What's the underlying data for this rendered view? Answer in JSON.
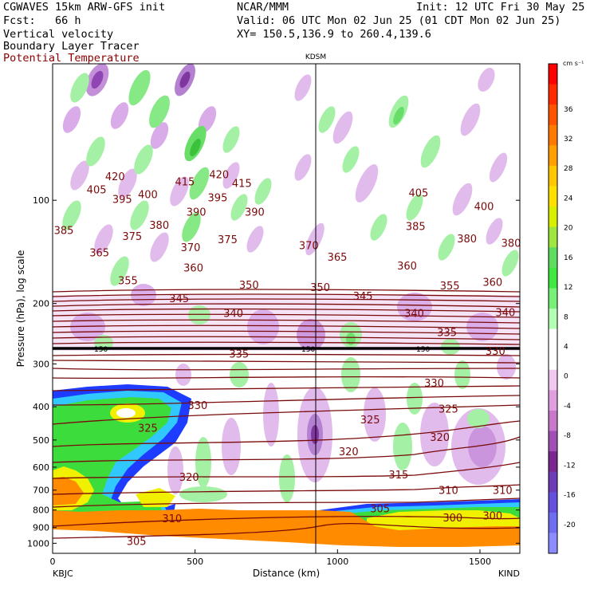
{
  "header": {
    "model": "CGWAVES 15km ARW-GFS init",
    "center": "NCAR/MMM",
    "init": "Init: 12 UTC Fri 30 May 25",
    "fcst": "Fcst:   66 h",
    "valid": "Valid: 06 UTC Mon 02 Jun 25 (01 CDT Mon 02 Jun 25)",
    "field1": "Vertical velocity",
    "xy": "XY= 150.5,136.9 to 260.4,139.6",
    "field2": "Boundary Layer Tracer",
    "field3": "Potential Temperature"
  },
  "colors": {
    "theta": "#7a0a0a",
    "tracer_orange": "#ff8c00",
    "tracer_yellow": "#f0f000",
    "tracer_green": "#3cdc3c",
    "tracer_cyan": "#30c8ff",
    "tracer_blue": "#1e3cff"
  },
  "chart_data": {
    "type": "heatmap",
    "title": "KDSM",
    "xlabel": "Distance (km)",
    "ylabel": "Pressure (hPa), log scale",
    "xlim": [
      0,
      1640
    ],
    "ylim": [
      1070,
      40
    ],
    "log_y": true,
    "x_ticks": [
      "0",
      "500",
      "1000",
      "1500"
    ],
    "x_end_labels": [
      "KBJC",
      "KIND"
    ],
    "y_ticks": [
      "100",
      "200",
      "300",
      "400",
      "500",
      "600",
      "700",
      "800",
      "900",
      "1000"
    ],
    "colorbar": {
      "unit": "cm s⁻¹",
      "labels": [
        "36",
        "32",
        "28",
        "24",
        "20",
        "16",
        "12",
        "8",
        "4",
        "0",
        "-4",
        "-8",
        "-12",
        "-16",
        "-20"
      ],
      "colors": [
        "#ff0000",
        "#ff2a00",
        "#ff5500",
        "#ff7a00",
        "#ffa000",
        "#ffc800",
        "#ffe000",
        "#d8f000",
        "#a0e640",
        "#60dc60",
        "#40e840",
        "#78f078",
        "#b4ffb4",
        "#ffffff",
        "#ffffff",
        "#f0c8f0",
        "#e0a0e0",
        "#c878c8",
        "#a050b4",
        "#7a2890",
        "#6e3cb4",
        "#6450dc",
        "#6e6ef0",
        "#8c8cff"
      ]
    },
    "marker_line": {
      "x": 940,
      "label": "KDSM"
    },
    "tropopause": {
      "p": 150,
      "label": "150"
    },
    "theta_labels": [
      {
        "v": "420",
        "x": 180,
        "p": 85
      },
      {
        "v": "405",
        "x": 115,
        "p": 93
      },
      {
        "v": "395",
        "x": 205,
        "p": 99
      },
      {
        "v": "400",
        "x": 295,
        "p": 96
      },
      {
        "v": "415",
        "x": 425,
        "p": 88
      },
      {
        "v": "420",
        "x": 545,
        "p": 84
      },
      {
        "v": "395",
        "x": 540,
        "p": 98
      },
      {
        "v": "415",
        "x": 625,
        "p": 89
      },
      {
        "v": "390",
        "x": 465,
        "p": 108
      },
      {
        "v": "385",
        "x": 0,
        "p": 122
      },
      {
        "v": "375",
        "x": 240,
        "p": 127
      },
      {
        "v": "380",
        "x": 335,
        "p": 118
      },
      {
        "v": "375",
        "x": 575,
        "p": 130
      },
      {
        "v": "390",
        "x": 670,
        "p": 108
      },
      {
        "v": "405",
        "x": 1245,
        "p": 95
      },
      {
        "v": "400",
        "x": 1475,
        "p": 104
      },
      {
        "v": "385",
        "x": 1235,
        "p": 119
      },
      {
        "v": "380",
        "x": 1415,
        "p": 129
      },
      {
        "v": "380",
        "x": 1570,
        "p": 133
      },
      {
        "v": "365",
        "x": 125,
        "p": 142
      },
      {
        "v": "370",
        "x": 445,
        "p": 137
      },
      {
        "v": "370",
        "x": 860,
        "p": 135
      },
      {
        "v": "365",
        "x": 960,
        "p": 146
      },
      {
        "v": "360",
        "x": 1205,
        "p": 155
      },
      {
        "v": "360",
        "x": 455,
        "p": 157
      },
      {
        "v": "355",
        "x": 225,
        "p": 171
      },
      {
        "v": "350",
        "x": 650,
        "p": 176
      },
      {
        "v": "350",
        "x": 900,
        "p": 179
      },
      {
        "v": "345",
        "x": 1050,
        "p": 190
      },
      {
        "v": "355",
        "x": 1355,
        "p": 177
      },
      {
        "v": "360",
        "x": 1505,
        "p": 173
      },
      {
        "v": "345",
        "x": 405,
        "p": 193
      },
      {
        "v": "340",
        "x": 595,
        "p": 213
      },
      {
        "v": "340",
        "x": 1230,
        "p": 213
      },
      {
        "v": "340",
        "x": 1550,
        "p": 212
      },
      {
        "v": "335",
        "x": 1345,
        "p": 242
      },
      {
        "v": "330",
        "x": 1515,
        "p": 275
      },
      {
        "v": "335",
        "x": 615,
        "p": 280
      },
      {
        "v": "330",
        "x": 1300,
        "p": 340
      },
      {
        "v": "330",
        "x": 470,
        "p": 395
      },
      {
        "v": "325",
        "x": 1075,
        "p": 435
      },
      {
        "v": "325",
        "x": 1350,
        "p": 405
      },
      {
        "v": "325",
        "x": 295,
        "p": 460
      },
      {
        "v": "320",
        "x": 1320,
        "p": 490
      },
      {
        "v": "320",
        "x": 1000,
        "p": 540
      },
      {
        "v": "320",
        "x": 440,
        "p": 640
      },
      {
        "v": "315",
        "x": 1175,
        "p": 630
      },
      {
        "v": "310",
        "x": 1350,
        "p": 700
      },
      {
        "v": "310",
        "x": 1540,
        "p": 700
      },
      {
        "v": "305",
        "x": 1110,
        "p": 790
      },
      {
        "v": "300",
        "x": 1365,
        "p": 840
      },
      {
        "v": "300",
        "x": 1505,
        "p": 830
      },
      {
        "v": "310",
        "x": 380,
        "p": 845
      },
      {
        "v": "305",
        "x": 255,
        "p": 985
      }
    ]
  }
}
